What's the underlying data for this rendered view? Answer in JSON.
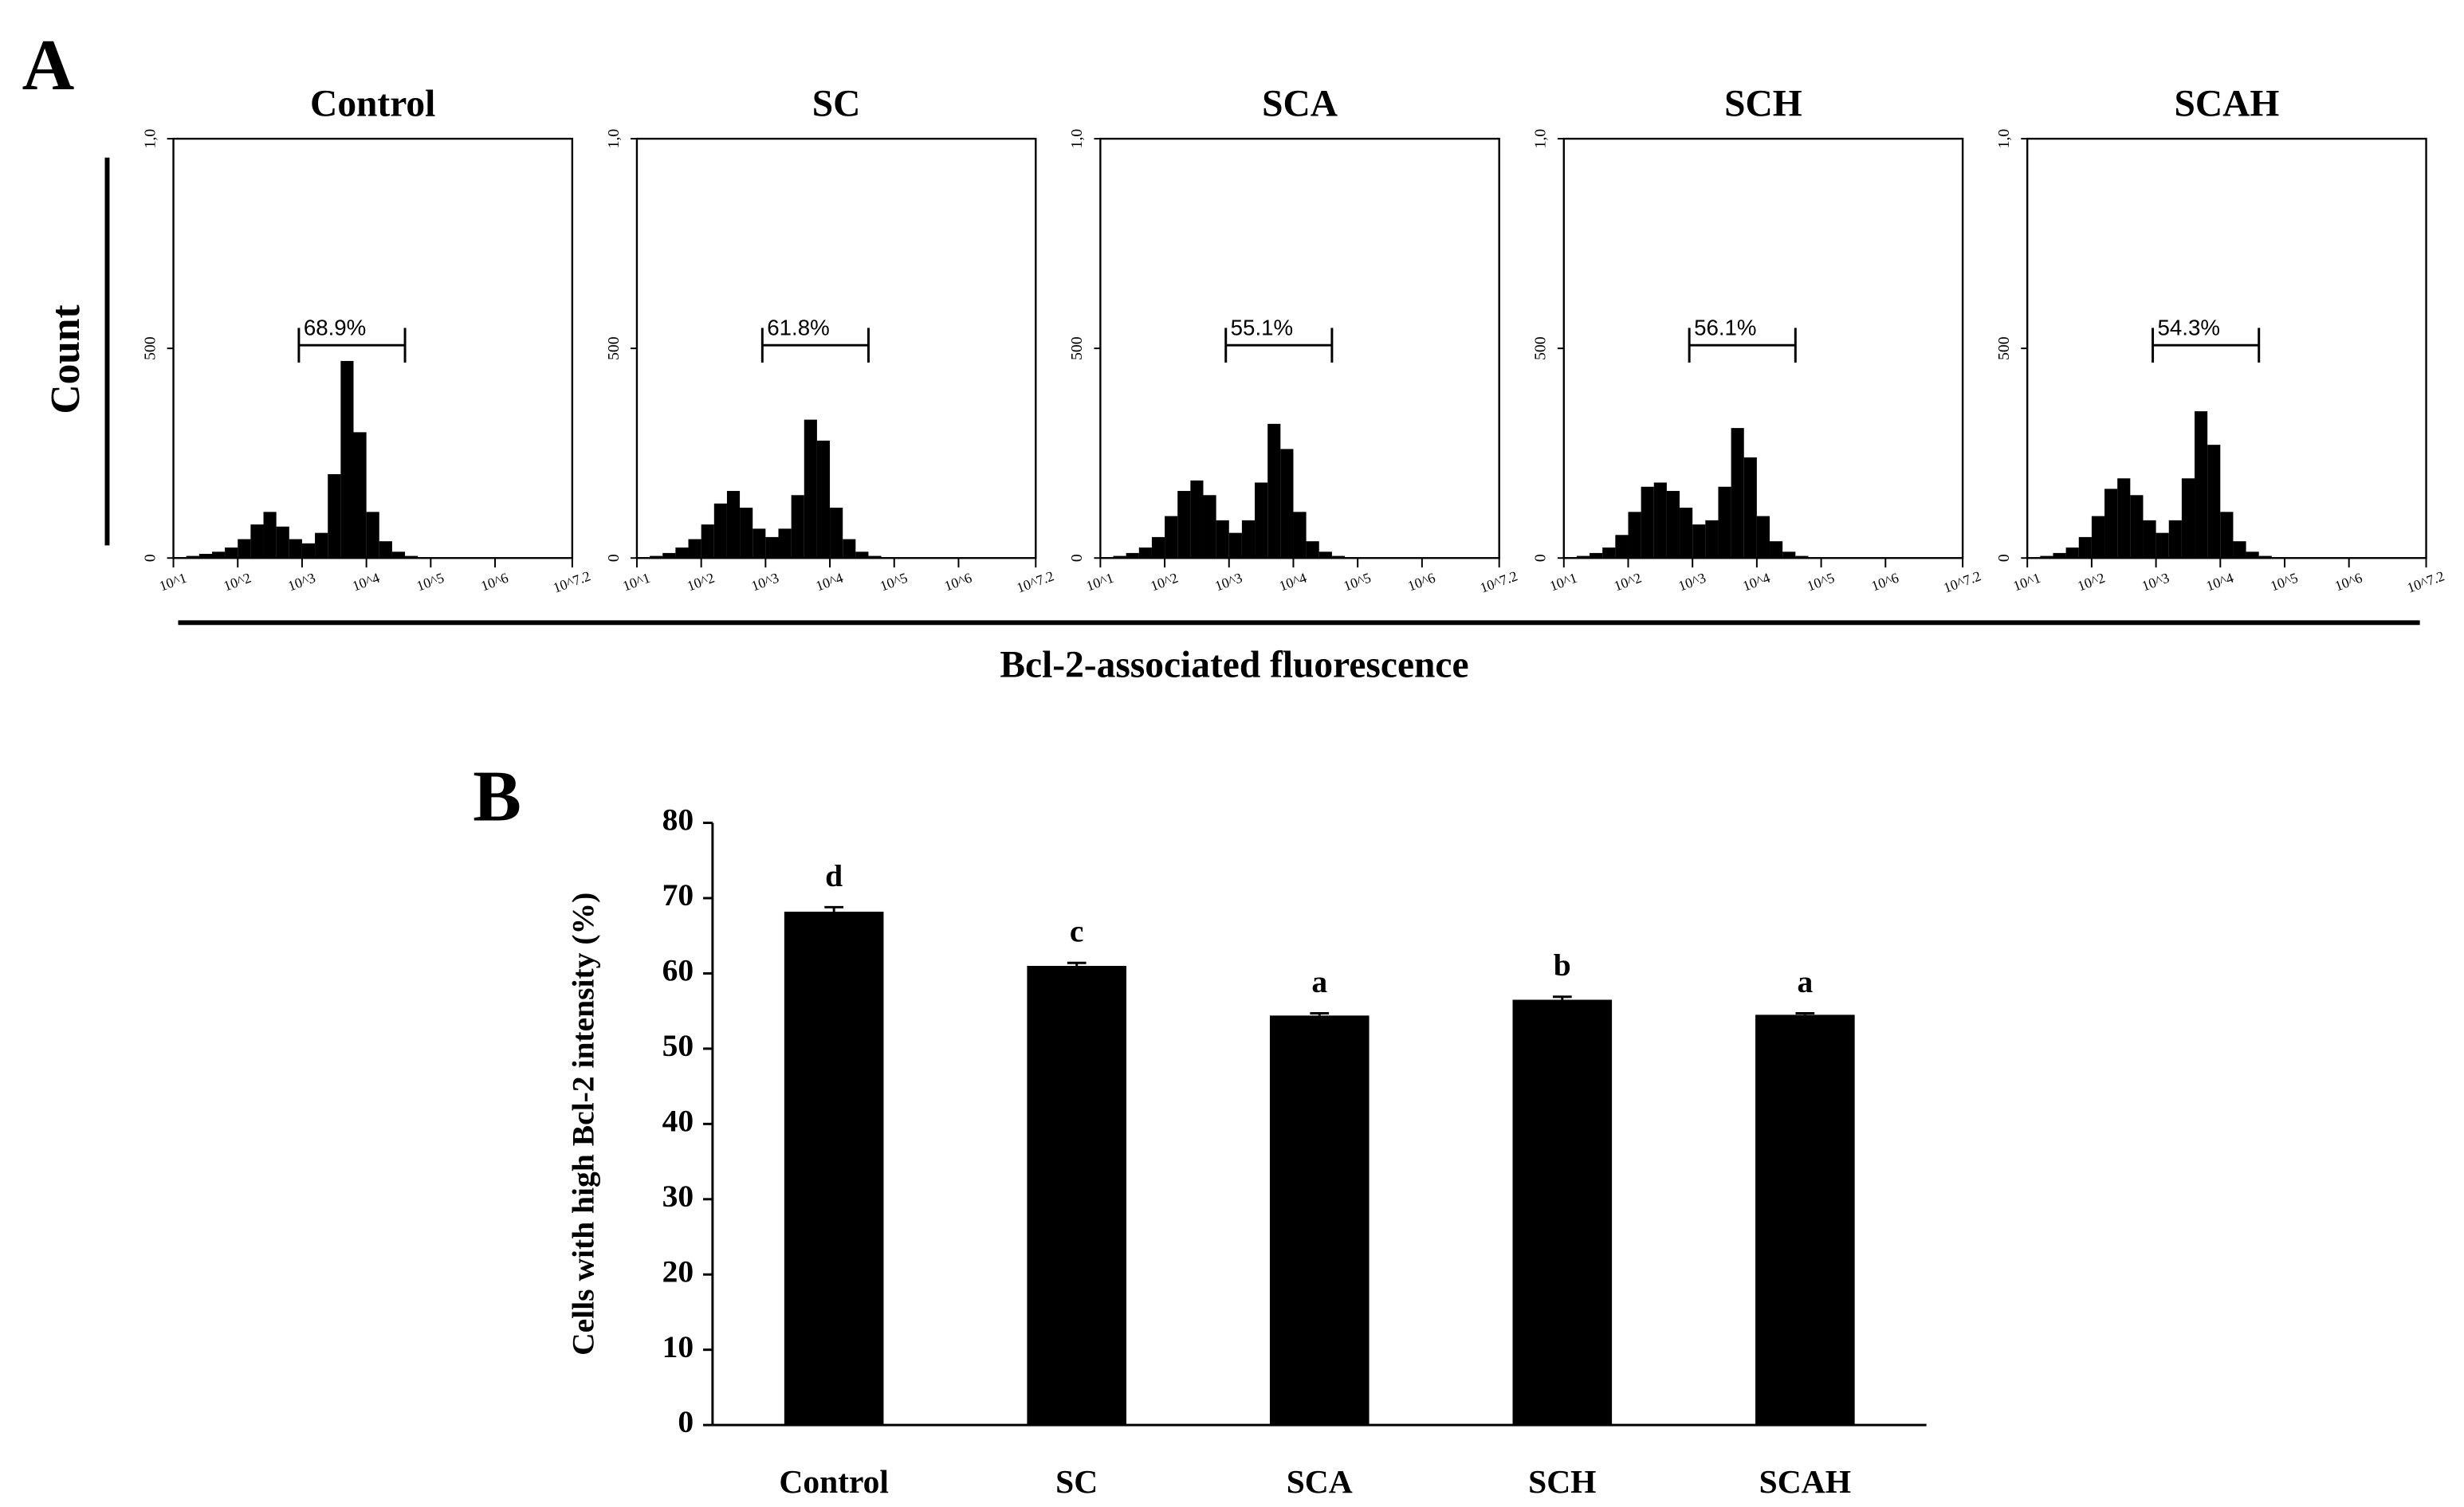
{
  "panel_a": {
    "label": "A",
    "ylabel": "Count",
    "xlabel": "Bcl-2-associated fluorescence"
  },
  "panel_b": {
    "label": "B"
  },
  "chart_data": [
    {
      "type": "histogram",
      "title": "Control",
      "color": "#000000",
      "bins": [
        1.0,
        1.2,
        1.4,
        1.6,
        1.8,
        2.0,
        2.2,
        2.4,
        2.6,
        2.8,
        3.0,
        3.2,
        3.4,
        3.6,
        3.8,
        4.0,
        4.2,
        4.4,
        4.6,
        4.8,
        5.0
      ],
      "counts": [
        2,
        5,
        10,
        15,
        25,
        45,
        80,
        110,
        75,
        45,
        35,
        60,
        200,
        470,
        300,
        110,
        40,
        15,
        5,
        2
      ],
      "gate": {
        "label": "68.9%",
        "range": [
          2.95,
          4.6
        ]
      },
      "xlim": [
        1,
        7.2
      ],
      "xticks": [
        {
          "value": 1,
          "label": "10^1"
        },
        {
          "value": 2,
          "label": "10^2"
        },
        {
          "value": 3,
          "label": "10^3"
        },
        {
          "value": 4,
          "label": "10^4"
        },
        {
          "value": 5,
          "label": "10^5"
        },
        {
          "value": 6,
          "label": "10^6"
        },
        {
          "value": 7.2,
          "label": "10^7.2"
        }
      ],
      "ylim": [
        0,
        1000
      ],
      "yticks": [
        0,
        500,
        {
          "value": 1000,
          "label": "1,0"
        }
      ]
    },
    {
      "type": "histogram",
      "title": "SC",
      "color": "#000000",
      "bins": [
        1.0,
        1.2,
        1.4,
        1.6,
        1.8,
        2.0,
        2.2,
        2.4,
        2.6,
        2.8,
        3.0,
        3.2,
        3.4,
        3.6,
        3.8,
        4.0,
        4.2,
        4.4,
        4.6,
        4.8,
        5.0
      ],
      "counts": [
        2,
        5,
        12,
        25,
        45,
        80,
        130,
        160,
        120,
        70,
        50,
        70,
        150,
        330,
        280,
        120,
        45,
        15,
        5,
        2
      ],
      "gate": {
        "label": "61.8%",
        "range": [
          2.95,
          4.6
        ]
      },
      "xlim": [
        1,
        7.2
      ],
      "xticks": [
        {
          "value": 1,
          "label": "10^1"
        },
        {
          "value": 2,
          "label": "10^2"
        },
        {
          "value": 3,
          "label": "10^3"
        },
        {
          "value": 4,
          "label": "10^4"
        },
        {
          "value": 5,
          "label": "10^5"
        },
        {
          "value": 6,
          "label": "10^6"
        },
        {
          "value": 7.2,
          "label": "10^7.2"
        }
      ],
      "ylim": [
        0,
        1000
      ],
      "yticks": [
        0,
        500,
        {
          "value": 1000,
          "label": "1,0"
        }
      ]
    },
    {
      "type": "histogram",
      "title": "SCA",
      "color": "#000000",
      "bins": [
        1.0,
        1.2,
        1.4,
        1.6,
        1.8,
        2.0,
        2.2,
        2.4,
        2.6,
        2.8,
        3.0,
        3.2,
        3.4,
        3.6,
        3.8,
        4.0,
        4.2,
        4.4,
        4.6,
        4.8,
        5.0
      ],
      "counts": [
        2,
        5,
        12,
        25,
        50,
        100,
        160,
        185,
        150,
        90,
        60,
        90,
        180,
        320,
        260,
        110,
        40,
        15,
        5,
        2
      ],
      "gate": {
        "label": "55.1%",
        "range": [
          2.95,
          4.6
        ]
      },
      "xlim": [
        1,
        7.2
      ],
      "xticks": [
        {
          "value": 1,
          "label": "10^1"
        },
        {
          "value": 2,
          "label": "10^2"
        },
        {
          "value": 3,
          "label": "10^3"
        },
        {
          "value": 4,
          "label": "10^4"
        },
        {
          "value": 5,
          "label": "10^5"
        },
        {
          "value": 6,
          "label": "10^6"
        },
        {
          "value": 7.2,
          "label": "10^7.2"
        }
      ],
      "ylim": [
        0,
        1000
      ],
      "yticks": [
        0,
        500,
        {
          "value": 1000,
          "label": "1,0"
        }
      ]
    },
    {
      "type": "histogram",
      "title": "SCH",
      "color": "#000000",
      "bins": [
        1.0,
        1.2,
        1.4,
        1.6,
        1.8,
        2.0,
        2.2,
        2.4,
        2.6,
        2.8,
        3.0,
        3.2,
        3.4,
        3.6,
        3.8,
        4.0,
        4.2,
        4.4,
        4.6,
        4.8,
        5.0
      ],
      "counts": [
        2,
        5,
        12,
        25,
        55,
        110,
        170,
        180,
        160,
        120,
        80,
        90,
        170,
        310,
        240,
        100,
        40,
        15,
        5,
        2
      ],
      "gate": {
        "label": "56.1%",
        "range": [
          2.95,
          4.6
        ]
      },
      "xlim": [
        1,
        7.2
      ],
      "xticks": [
        {
          "value": 1,
          "label": "10^1"
        },
        {
          "value": 2,
          "label": "10^2"
        },
        {
          "value": 3,
          "label": "10^3"
        },
        {
          "value": 4,
          "label": "10^4"
        },
        {
          "value": 5,
          "label": "10^5"
        },
        {
          "value": 6,
          "label": "10^6"
        },
        {
          "value": 7.2,
          "label": "10^7.2"
        }
      ],
      "ylim": [
        0,
        1000
      ],
      "yticks": [
        0,
        500,
        {
          "value": 1000,
          "label": "1,0"
        }
      ]
    },
    {
      "type": "histogram",
      "title": "SCAH",
      "color": "#000000",
      "bins": [
        1.0,
        1.2,
        1.4,
        1.6,
        1.8,
        2.0,
        2.2,
        2.4,
        2.6,
        2.8,
        3.0,
        3.2,
        3.4,
        3.6,
        3.8,
        4.0,
        4.2,
        4.4,
        4.6,
        4.8,
        5.0
      ],
      "counts": [
        2,
        5,
        12,
        25,
        50,
        100,
        165,
        190,
        150,
        90,
        60,
        90,
        190,
        350,
        270,
        110,
        40,
        15,
        5,
        2
      ],
      "gate": {
        "label": "54.3%",
        "range": [
          2.95,
          4.6
        ]
      },
      "xlim": [
        1,
        7.2
      ],
      "xticks": [
        {
          "value": 1,
          "label": "10^1"
        },
        {
          "value": 2,
          "label": "10^2"
        },
        {
          "value": 3,
          "label": "10^3"
        },
        {
          "value": 4,
          "label": "10^4"
        },
        {
          "value": 5,
          "label": "10^5"
        },
        {
          "value": 6,
          "label": "10^6"
        },
        {
          "value": 7.2,
          "label": "10^7.2"
        }
      ],
      "ylim": [
        0,
        1000
      ],
      "yticks": [
        0,
        500,
        {
          "value": 1000,
          "label": "1,0"
        }
      ]
    },
    {
      "type": "bar",
      "ylabel": "Cells with high Bcl-2 intensity (%)",
      "color": "#000000",
      "categories": [
        "Control",
        "SC",
        "SCA",
        "SCH",
        "SCAH"
      ],
      "values": [
        68.2,
        61.0,
        54.4,
        56.5,
        54.5
      ],
      "errors": [
        0.6,
        0.4,
        0.3,
        0.4,
        0.2
      ],
      "annotations": [
        "d",
        "c",
        "a",
        "b",
        "a"
      ],
      "ylim": [
        0,
        80
      ],
      "yticks": [
        0,
        10,
        20,
        30,
        40,
        50,
        60,
        70,
        80
      ]
    }
  ]
}
